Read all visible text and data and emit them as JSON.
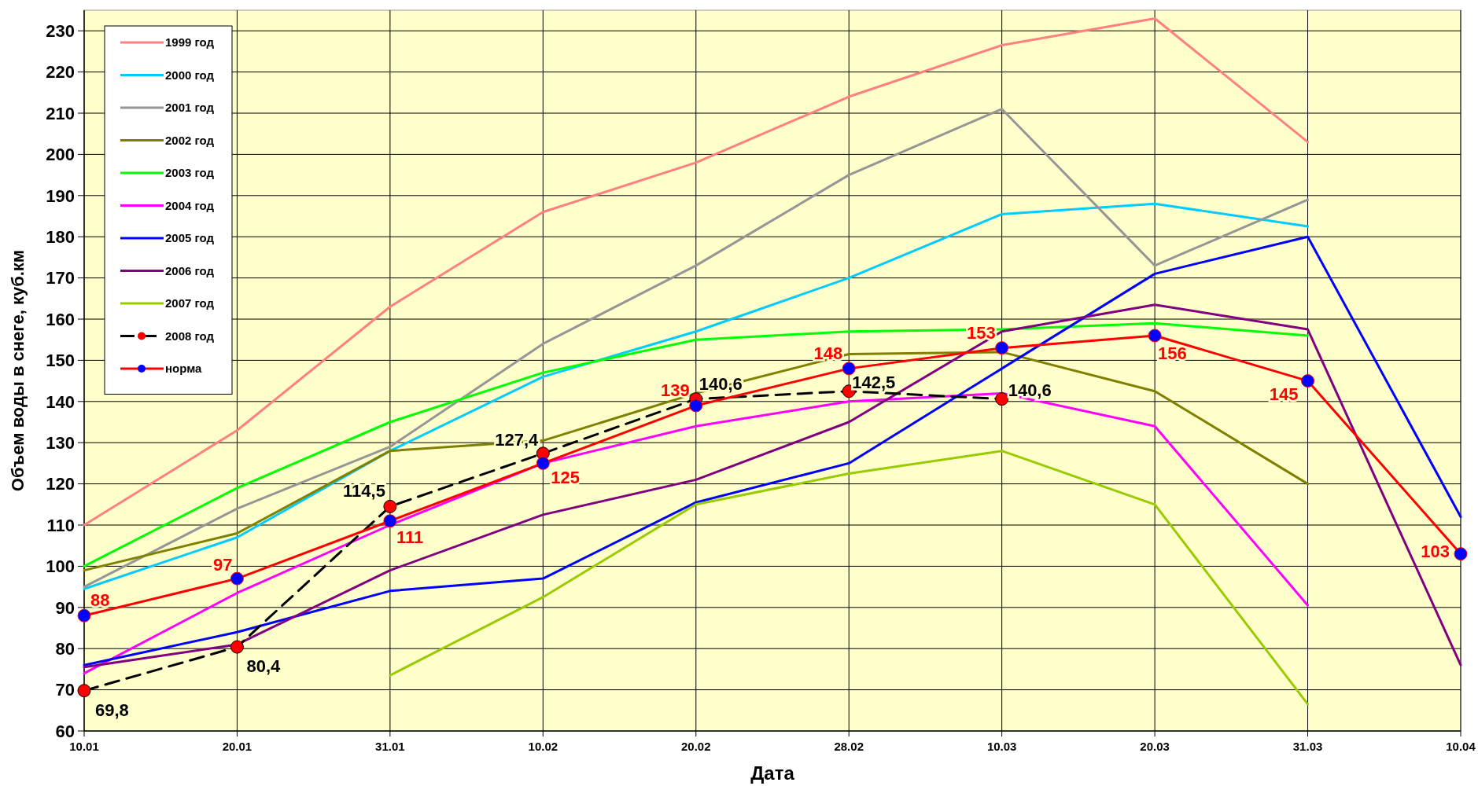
{
  "chart_data": {
    "type": "line",
    "xlabel": "Дата",
    "ylabel": "Объем воды в снеге, куб.км",
    "categories": [
      "10.01",
      "20.01",
      "31.01",
      "10.02",
      "20.02",
      "28.02",
      "10.03",
      "20.03",
      "31.03",
      "10.04"
    ],
    "ylim": [
      60,
      235
    ],
    "yticks": [
      60,
      70,
      80,
      90,
      100,
      110,
      120,
      130,
      140,
      150,
      160,
      170,
      180,
      190,
      200,
      210,
      220,
      230
    ],
    "grid": true,
    "legend": "top left",
    "marker": "none",
    "line_style": "solid",
    "series": [
      {
        "name": "1999 год",
        "color": "#ff8080",
        "values": [
          110,
          133,
          163,
          186,
          198,
          214,
          226.5,
          233,
          203,
          null
        ]
      },
      {
        "name": "2000 год",
        "color": "#00ccff",
        "values": [
          94.5,
          107,
          128,
          146,
          157,
          170,
          185.5,
          188,
          182.5,
          null
        ]
      },
      {
        "name": "2001 год",
        "color": "#969696",
        "values": [
          95,
          114,
          129,
          154,
          173,
          195,
          211,
          173,
          189,
          null
        ]
      },
      {
        "name": "2002 год",
        "color": "#808000",
        "values": [
          99,
          108,
          128,
          130.5,
          142,
          151.5,
          152,
          142.5,
          120,
          null
        ]
      },
      {
        "name": "2003 год",
        "color": "#00ff00",
        "values": [
          100,
          119,
          135,
          147,
          155,
          157,
          157.5,
          159,
          156,
          null
        ]
      },
      {
        "name": "2004 год",
        "color": "#ff00ff",
        "values": [
          74,
          93.5,
          110,
          125,
          134,
          140,
          142,
          134,
          90.5,
          null
        ]
      },
      {
        "name": "2005 год",
        "color": "#0000ff",
        "values": [
          76,
          84,
          94,
          97,
          115.5,
          125,
          148,
          171,
          180,
          112
        ]
      },
      {
        "name": "2006 год",
        "color": "#800080",
        "values": [
          75.5,
          81,
          99,
          112.5,
          121,
          135,
          157,
          163.5,
          157.5,
          76
        ]
      },
      {
        "name": "2007 год",
        "color": "#99cc00",
        "values": [
          null,
          null,
          73.5,
          92.5,
          115,
          122.5,
          128,
          115,
          66.5,
          null
        ]
      },
      {
        "name": "2008 год",
        "color": "#000000",
        "line_style": "dashed",
        "marker": "circle",
        "values": [
          69.8,
          80.4,
          114.5,
          127.4,
          140.6,
          142.5,
          140.6,
          null,
          null,
          null
        ],
        "value_labels": [
          "69,8",
          "80,4",
          "114,5",
          "127,4",
          "140,6",
          "142,5",
          "140,6",
          null,
          null,
          null
        ]
      },
      {
        "name": "норма",
        "color": "#ff0000",
        "marker": "circle",
        "values": [
          88,
          97,
          111,
          125,
          139,
          148,
          153,
          156,
          145,
          103
        ],
        "value_labels": [
          "88",
          "97",
          "111",
          "125",
          "139",
          "148",
          "153",
          "156",
          "145",
          "103"
        ]
      }
    ]
  }
}
